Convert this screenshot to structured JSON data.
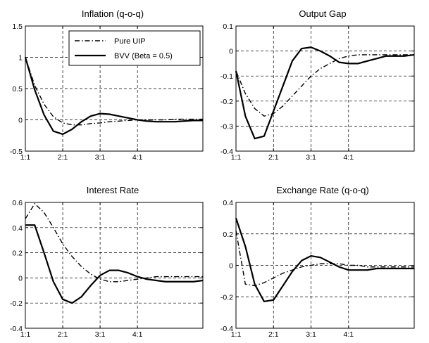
{
  "figure": {
    "background": "#ffffff",
    "line_color": "#000000"
  },
  "chart_data": [
    {
      "type": "line",
      "title": "Inflation (q-o-q)",
      "xlabel": "",
      "ylabel": "",
      "xtick_labels": [
        "1:1",
        "2:1",
        "3:1",
        "4:1"
      ],
      "xlim": [
        1,
        20
      ],
      "ylim": [
        -0.5,
        1.5
      ],
      "yticks": [
        -0.5,
        0,
        0.5,
        1,
        1.5
      ],
      "ytick_labels": [
        "-0.5",
        "0",
        "0.5",
        "1",
        "1.5"
      ],
      "grid": true,
      "legend": {
        "position": "top-right",
        "entries": [
          "Pure UIP",
          "BVV (Beta = 0.5)"
        ]
      },
      "series": [
        {
          "name": "Pure UIP",
          "style": "dash-dot",
          "values": [
            1.0,
            0.55,
            0.25,
            0.05,
            -0.05,
            -0.08,
            -0.08,
            -0.06,
            -0.05,
            -0.03,
            -0.02,
            -0.01,
            0.0,
            0.0,
            0.0,
            0.0,
            0.01,
            0.01,
            0.01,
            0.01
          ]
        },
        {
          "name": "BVV (Beta = 0.5)",
          "style": "solid",
          "values": [
            1.0,
            0.48,
            0.08,
            -0.18,
            -0.23,
            -0.15,
            -0.03,
            0.06,
            0.1,
            0.09,
            0.06,
            0.03,
            0.0,
            -0.02,
            -0.03,
            -0.03,
            -0.03,
            -0.02,
            -0.01,
            -0.01
          ]
        }
      ]
    },
    {
      "type": "line",
      "title": "Output Gap",
      "xlabel": "",
      "ylabel": "",
      "xtick_labels": [
        "1:1",
        "2:1",
        "3:1",
        "4:1"
      ],
      "xlim": [
        1,
        20
      ],
      "ylim": [
        -0.4,
        0.1
      ],
      "yticks": [
        -0.4,
        -0.3,
        -0.2,
        -0.1,
        0,
        0.1
      ],
      "ytick_labels": [
        "-0.4",
        "-0.3",
        "-0.2",
        "-0.1",
        "0",
        "0.1"
      ],
      "grid": true,
      "series": [
        {
          "name": "Pure UIP",
          "style": "dash-dot",
          "values": [
            -0.08,
            -0.17,
            -0.23,
            -0.26,
            -0.25,
            -0.22,
            -0.18,
            -0.14,
            -0.1,
            -0.07,
            -0.05,
            -0.03,
            -0.02,
            -0.015,
            -0.015,
            -0.015,
            -0.015,
            -0.015,
            -0.015,
            -0.015
          ]
        },
        {
          "name": "BVV (Beta = 0.5)",
          "style": "solid",
          "values": [
            -0.08,
            -0.26,
            -0.35,
            -0.34,
            -0.24,
            -0.14,
            -0.04,
            0.01,
            0.015,
            0.0,
            -0.02,
            -0.045,
            -0.05,
            -0.05,
            -0.04,
            -0.03,
            -0.02,
            -0.02,
            -0.02,
            -0.015
          ]
        }
      ]
    },
    {
      "type": "line",
      "title": "Interest Rate",
      "xlabel": "",
      "ylabel": "",
      "xtick_labels": [
        "1:1",
        "2:1",
        "3:1",
        "4:1"
      ],
      "xlim": [
        1,
        20
      ],
      "ylim": [
        -0.4,
        0.6
      ],
      "yticks": [
        -0.4,
        -0.2,
        0,
        0.2,
        0.4,
        0.6
      ],
      "ytick_labels": [
        "-0.4",
        "-0.2",
        "0",
        "0.2",
        "0.4",
        "0.6"
      ],
      "grid": true,
      "series": [
        {
          "name": "Pure UIP",
          "style": "dash-dot",
          "values": [
            0.47,
            0.59,
            0.52,
            0.4,
            0.27,
            0.17,
            0.09,
            0.03,
            -0.01,
            -0.03,
            -0.03,
            -0.02,
            -0.01,
            0.0,
            0.01,
            0.01,
            0.01,
            0.01,
            0.01,
            0.01
          ]
        },
        {
          "name": "BVV (Beta = 0.5)",
          "style": "solid",
          "values": [
            0.42,
            0.42,
            0.2,
            -0.03,
            -0.17,
            -0.2,
            -0.15,
            -0.06,
            0.02,
            0.06,
            0.06,
            0.04,
            0.01,
            -0.01,
            -0.02,
            -0.03,
            -0.03,
            -0.03,
            -0.03,
            -0.02
          ]
        }
      ]
    },
    {
      "type": "line",
      "title": "Exchange Rate (q-o-q)",
      "xlabel": "",
      "ylabel": "",
      "xtick_labels": [
        "1:1",
        "2:1",
        "3:1",
        "4:1"
      ],
      "xlim": [
        1,
        20
      ],
      "ylim": [
        -0.4,
        0.4
      ],
      "yticks": [
        -0.4,
        -0.2,
        0,
        0.2,
        0.4
      ],
      "ytick_labels": [
        "-0.4",
        "-0.2",
        "0",
        "0.2",
        "0.4"
      ],
      "grid": true,
      "series": [
        {
          "name": "Pure UIP",
          "style": "dash-dot",
          "values": [
            0.22,
            -0.12,
            -0.13,
            -0.11,
            -0.08,
            -0.05,
            -0.03,
            -0.01,
            0.0,
            0.01,
            0.01,
            0.01,
            0.0,
            0.0,
            -0.01,
            -0.01,
            -0.01,
            -0.01,
            -0.01,
            -0.01
          ]
        },
        {
          "name": "BVV (Beta = 0.5)",
          "style": "solid",
          "values": [
            0.3,
            0.12,
            -0.12,
            -0.23,
            -0.22,
            -0.13,
            -0.04,
            0.03,
            0.06,
            0.05,
            0.02,
            -0.01,
            -0.03,
            -0.03,
            -0.03,
            -0.02,
            -0.02,
            -0.02,
            -0.02,
            -0.02
          ]
        }
      ]
    }
  ]
}
